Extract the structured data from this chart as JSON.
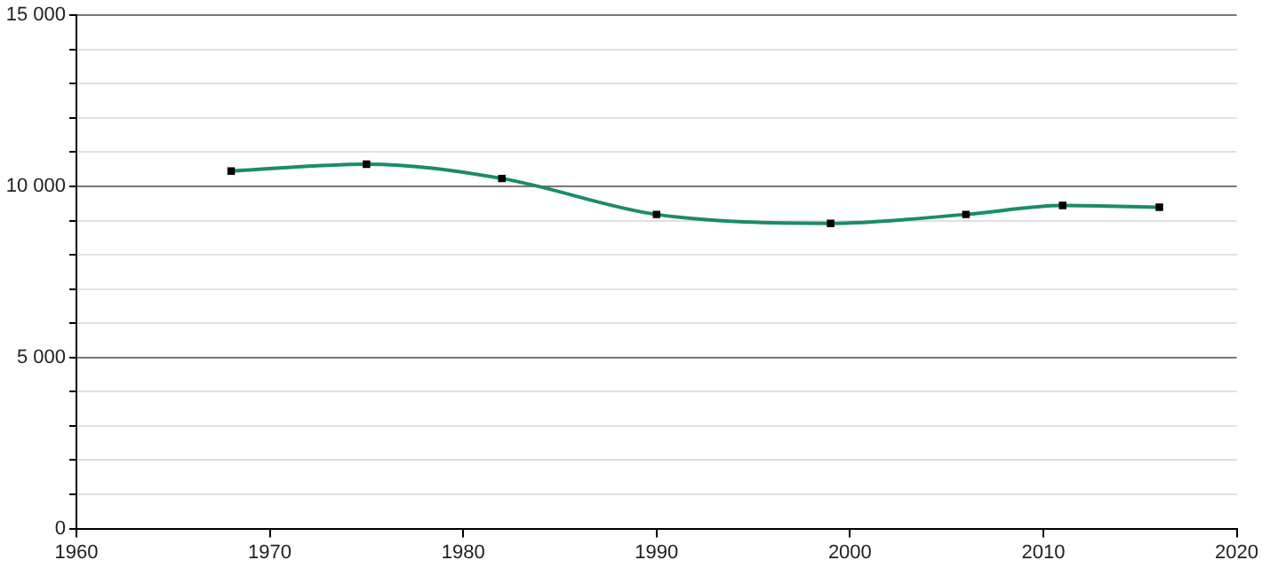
{
  "chart_data": {
    "type": "line",
    "x": [
      1968,
      1975,
      1982,
      1990,
      1999,
      2006,
      2011,
      2016
    ],
    "series": [
      {
        "color": "#1a8c6a",
        "values": [
          10450,
          10650,
          10230,
          9180,
          8920,
          9180,
          9440,
          9390
        ]
      }
    ],
    "xlim": [
      1960,
      2020
    ],
    "xticks": [
      1960,
      1970,
      1980,
      1990,
      2000,
      2010,
      2020
    ],
    "ylim": [
      0,
      15000
    ],
    "yticks": [
      {
        "value": 0,
        "label": "0"
      },
      {
        "value": 1000,
        "label": null
      },
      {
        "value": 2000,
        "label": null
      },
      {
        "value": 3000,
        "label": null
      },
      {
        "value": 4000,
        "label": null
      },
      {
        "value": 5000,
        "label": "5 000"
      },
      {
        "value": 6000,
        "label": null
      },
      {
        "value": 7000,
        "label": null
      },
      {
        "value": 8000,
        "label": null
      },
      {
        "value": 9000,
        "label": null
      },
      {
        "value": 10000,
        "label": "10 000"
      },
      {
        "value": 11000,
        "label": null
      },
      {
        "value": 12000,
        "label": null
      },
      {
        "value": 13000,
        "label": null
      },
      {
        "value": 14000,
        "label": null
      },
      {
        "value": 15000,
        "label": "15 000"
      }
    ],
    "grid": "y",
    "legend": false,
    "marker": "square",
    "line_style": "solid"
  }
}
